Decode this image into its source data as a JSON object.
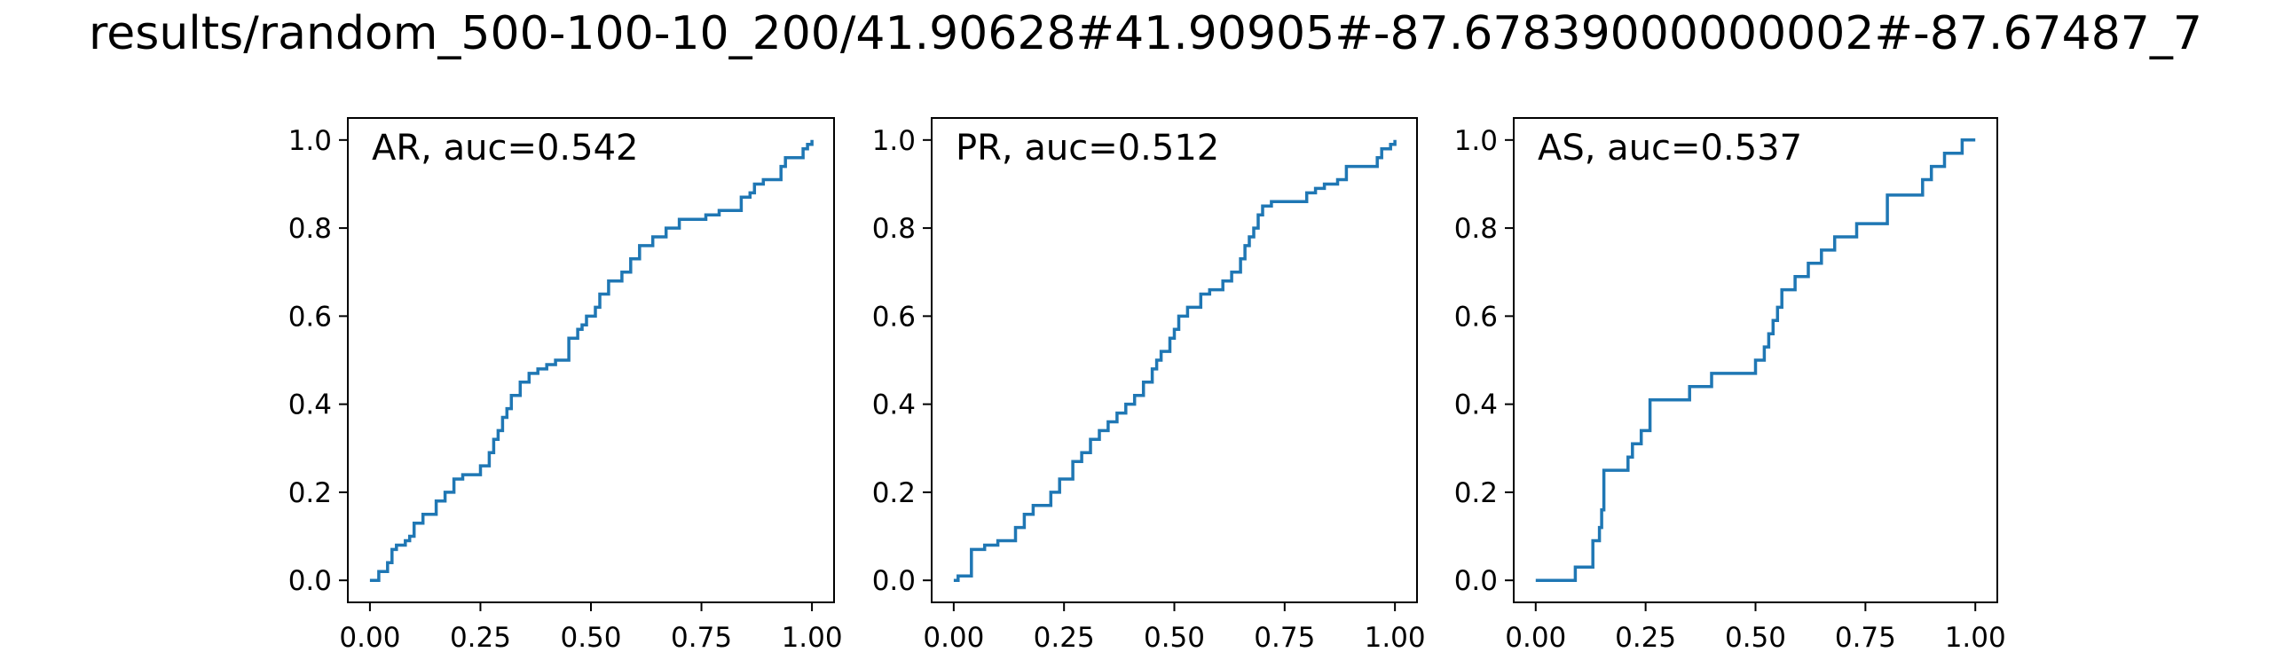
{
  "title": "results/random_500-100-10_200/41.90628#41.90905#-87.67839000000002#-87.67487_7",
  "colors": {
    "line": "#1f77b4",
    "axes": "#000000",
    "background": "#ffffff"
  },
  "chart_data": [
    {
      "type": "line",
      "drawstyle": "steps-post",
      "annotation": "AR, auc=0.542",
      "xlim": [
        -0.05,
        1.05
      ],
      "ylim": [
        -0.05,
        1.05
      ],
      "xticks": [
        "0.00",
        "0.25",
        "0.50",
        "0.75",
        "1.00"
      ],
      "yticks": [
        "0.0",
        "0.2",
        "0.4",
        "0.6",
        "0.8",
        "1.0"
      ],
      "grid": false,
      "series": [
        {
          "x": [
            0.0,
            0.02,
            0.04,
            0.05,
            0.06,
            0.08,
            0.09,
            0.1,
            0.12,
            0.15,
            0.17,
            0.19,
            0.21,
            0.25,
            0.27,
            0.28,
            0.29,
            0.3,
            0.31,
            0.32,
            0.34,
            0.36,
            0.38,
            0.4,
            0.42,
            0.45,
            0.47,
            0.48,
            0.49,
            0.51,
            0.52,
            0.54,
            0.57,
            0.59,
            0.61,
            0.64,
            0.67,
            0.7,
            0.76,
            0.79,
            0.84,
            0.86,
            0.87,
            0.89,
            0.92,
            0.93,
            0.94,
            0.97,
            0.98,
            0.99,
            1.0
          ],
          "y": [
            0.0,
            0.02,
            0.04,
            0.07,
            0.08,
            0.09,
            0.1,
            0.13,
            0.15,
            0.18,
            0.2,
            0.23,
            0.24,
            0.26,
            0.29,
            0.32,
            0.34,
            0.37,
            0.39,
            0.42,
            0.45,
            0.47,
            0.48,
            0.49,
            0.5,
            0.55,
            0.57,
            0.58,
            0.6,
            0.62,
            0.65,
            0.68,
            0.7,
            0.73,
            0.76,
            0.78,
            0.8,
            0.82,
            0.83,
            0.84,
            0.87,
            0.88,
            0.9,
            0.91,
            0.91,
            0.94,
            0.96,
            0.96,
            0.98,
            0.99,
            1.0
          ]
        }
      ]
    },
    {
      "type": "line",
      "drawstyle": "steps-post",
      "annotation": "PR, auc=0.512",
      "xlim": [
        -0.05,
        1.05
      ],
      "ylim": [
        -0.05,
        1.05
      ],
      "xticks": [
        "0.00",
        "0.25",
        "0.50",
        "0.75",
        "1.00"
      ],
      "yticks": [
        "0.0",
        "0.2",
        "0.4",
        "0.6",
        "0.8",
        "1.0"
      ],
      "grid": false,
      "series": [
        {
          "x": [
            0.0,
            0.01,
            0.04,
            0.07,
            0.1,
            0.14,
            0.16,
            0.18,
            0.22,
            0.24,
            0.27,
            0.29,
            0.31,
            0.33,
            0.35,
            0.37,
            0.39,
            0.41,
            0.43,
            0.45,
            0.46,
            0.47,
            0.49,
            0.5,
            0.51,
            0.53,
            0.56,
            0.58,
            0.61,
            0.63,
            0.65,
            0.66,
            0.67,
            0.68,
            0.69,
            0.7,
            0.71,
            0.72,
            0.8,
            0.82,
            0.84,
            0.87,
            0.89,
            0.96,
            0.97,
            0.99,
            1.0
          ],
          "y": [
            0.0,
            0.01,
            0.07,
            0.08,
            0.09,
            0.12,
            0.15,
            0.17,
            0.2,
            0.23,
            0.27,
            0.29,
            0.32,
            0.34,
            0.36,
            0.38,
            0.4,
            0.42,
            0.45,
            0.48,
            0.5,
            0.52,
            0.55,
            0.57,
            0.6,
            0.62,
            0.65,
            0.66,
            0.68,
            0.7,
            0.73,
            0.76,
            0.78,
            0.8,
            0.83,
            0.85,
            0.85,
            0.86,
            0.88,
            0.89,
            0.9,
            0.91,
            0.94,
            0.96,
            0.98,
            0.99,
            1.0
          ]
        }
      ]
    },
    {
      "type": "line",
      "drawstyle": "steps-post",
      "annotation": "AS, auc=0.537",
      "xlim": [
        -0.05,
        1.05
      ],
      "ylim": [
        -0.05,
        1.05
      ],
      "xticks": [
        "0.00",
        "0.25",
        "0.50",
        "0.75",
        "1.00"
      ],
      "yticks": [
        "0.0",
        "0.2",
        "0.4",
        "0.6",
        "0.8",
        "1.0"
      ],
      "grid": false,
      "series": [
        {
          "x": [
            0.0,
            0.09,
            0.13,
            0.145,
            0.15,
            0.155,
            0.21,
            0.22,
            0.24,
            0.26,
            0.35,
            0.4,
            0.5,
            0.52,
            0.53,
            0.54,
            0.55,
            0.56,
            0.59,
            0.62,
            0.65,
            0.68,
            0.73,
            0.8,
            0.88,
            0.9,
            0.93,
            0.97,
            1.0
          ],
          "y": [
            0.0,
            0.03,
            0.09,
            0.12,
            0.16,
            0.25,
            0.28,
            0.31,
            0.34,
            0.41,
            0.44,
            0.47,
            0.5,
            0.53,
            0.56,
            0.59,
            0.62,
            0.66,
            0.69,
            0.72,
            0.75,
            0.78,
            0.81,
            0.875,
            0.91,
            0.94,
            0.97,
            1.0,
            1.0
          ]
        }
      ]
    }
  ]
}
